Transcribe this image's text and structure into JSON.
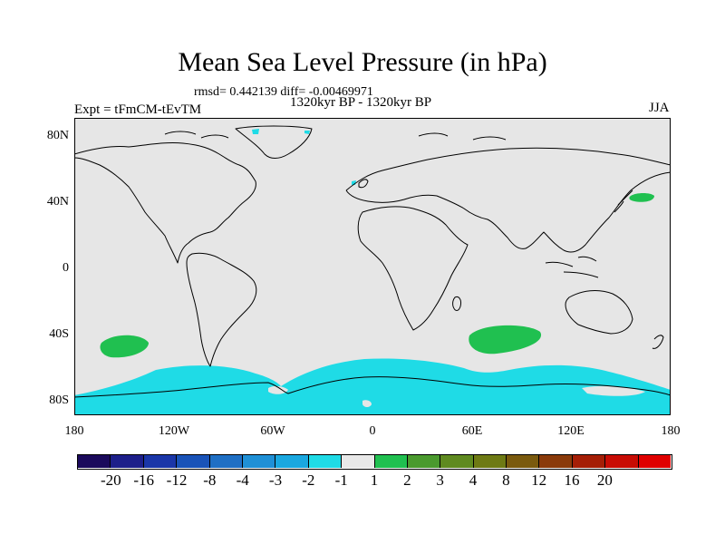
{
  "title": "Mean Sea Level Pressure (in hPa)",
  "stats": "rmsd= 0.442139 diff= -0.00469971",
  "left_label": "Expt = tFmCM-tEvTM",
  "center_label": "1320kyr BP - 1320kyr BP",
  "right_label": "JJA",
  "y_axis": {
    "ticks": [
      {
        "label": "80N",
        "lat": 80
      },
      {
        "label": "40N",
        "lat": 40
      },
      {
        "label": "0",
        "lat": 0
      },
      {
        "label": "40S",
        "lat": -40
      },
      {
        "label": "80S",
        "lat": -80
      }
    ],
    "range": [
      -90,
      90
    ]
  },
  "x_axis": {
    "ticks": [
      {
        "label": "180",
        "lon": -180
      },
      {
        "label": "120W",
        "lon": -120
      },
      {
        "label": "60W",
        "lon": -60
      },
      {
        "label": "0",
        "lon": 0
      },
      {
        "label": "60E",
        "lon": 60
      },
      {
        "label": "120E",
        "lon": 120
      },
      {
        "label": "180",
        "lon": 180
      }
    ],
    "range": [
      -180,
      180
    ]
  },
  "colorbar": {
    "colors": [
      "#1b0a5c",
      "#1d1f8a",
      "#1a36a8",
      "#1953b8",
      "#1f6fc4",
      "#1f90d6",
      "#1aa8e0",
      "#1fdbe6",
      "#e8e8e8",
      "#20c050",
      "#4a9a2e",
      "#5f8a20",
      "#6e7a14",
      "#7a5a0e",
      "#8a3a0a",
      "#a51e06",
      "#c80c04",
      "#e00000"
    ],
    "labels": [
      "-20",
      "-16",
      "-12",
      "-8",
      "-4",
      "-3",
      "-2",
      "-1",
      "1",
      "2",
      "3",
      "4",
      "8",
      "12",
      "16",
      "20"
    ]
  },
  "colors": {
    "background": "#e6e6e6",
    "negative_fill": "#1fdbe6",
    "positive_fill": "#20c050"
  }
}
